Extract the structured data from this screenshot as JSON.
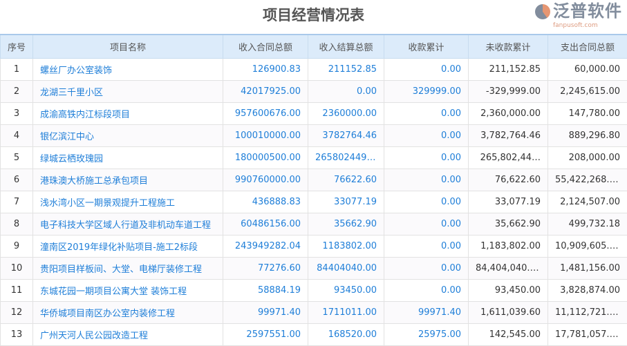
{
  "title": "项目经营情况表",
  "columns": [
    "序号",
    "项目名称",
    "收入合同总额",
    "收入结算总额",
    "收款累计",
    "未收款累计",
    "支出合同总额"
  ],
  "rows": [
    [
      "1",
      "螺丝厂办公室装饰",
      "126900.83",
      "211152.85",
      "0.00",
      "211,152.85",
      "60,000.00"
    ],
    [
      "2",
      "龙湖三千里小区",
      "42017925.00",
      "0.00",
      "329999.00",
      "-329,999.00",
      "2,245,615.00"
    ],
    [
      "3",
      "成渝高铁内江标段项目",
      "957600676.00",
      "2360000.00",
      "0.00",
      "2,360,000.00",
      "147,780.00"
    ],
    [
      "4",
      "银亿滨江中心",
      "100010000.00",
      "3782764.46",
      "0.00",
      "3,782,764.46",
      "889,296.80"
    ],
    [
      "5",
      "绿城云栖玫瑰园",
      "180000500.00",
      "265802449.96",
      "0.00",
      "265,802,44…",
      "208,000.00"
    ],
    [
      "6",
      "港珠澳大桥施工总承包项目",
      "990760000.00",
      "76622.60",
      "0.00",
      "76,622.60",
      "55,422,268.21"
    ],
    [
      "7",
      "浅水湾小区一期景观提升工程施工",
      "436888.83",
      "33077.19",
      "0.00",
      "33,077.19",
      "2,124,507.00"
    ],
    [
      "8",
      "电子科技大学区域人行道及非机动车道工程",
      "60486156.00",
      "35662.90",
      "0.00",
      "35,662.90",
      "499,732.18"
    ],
    [
      "9",
      "潼南区2019年绿化补贴项目-施工2标段",
      "243949282.04",
      "1183802.00",
      "0.00",
      "1,183,802.00",
      "10,909,605.00"
    ],
    [
      "10",
      "贵阳项目样板间、大堂、电梯厅装修工程",
      "77276.60",
      "84404040.00",
      "0.00",
      "84,404,040.00",
      "1,481,156.00"
    ],
    [
      "11",
      "东城花园一期项目公寓大堂 装饰工程",
      "58884.19",
      "93450.00",
      "0.00",
      "93,450.00",
      "3,828,874.00"
    ],
    [
      "12",
      "华侨城项目南区办公室内装修工程",
      "99971.40",
      "1711011.00",
      "99971.40",
      "1,611,039.60",
      "11,112,721.00"
    ],
    [
      "13",
      "广州天河人民公园改造工程",
      "2597551.00",
      "168520.00",
      "25975.00",
      "142,545.00",
      "17,781,057.00"
    ]
  ],
  "watermark": {
    "text": "泛普软件",
    "url": "fanpusoft.com"
  },
  "colors": {
    "link": "#1e7ed8",
    "header_bg": "#dcebfa"
  }
}
